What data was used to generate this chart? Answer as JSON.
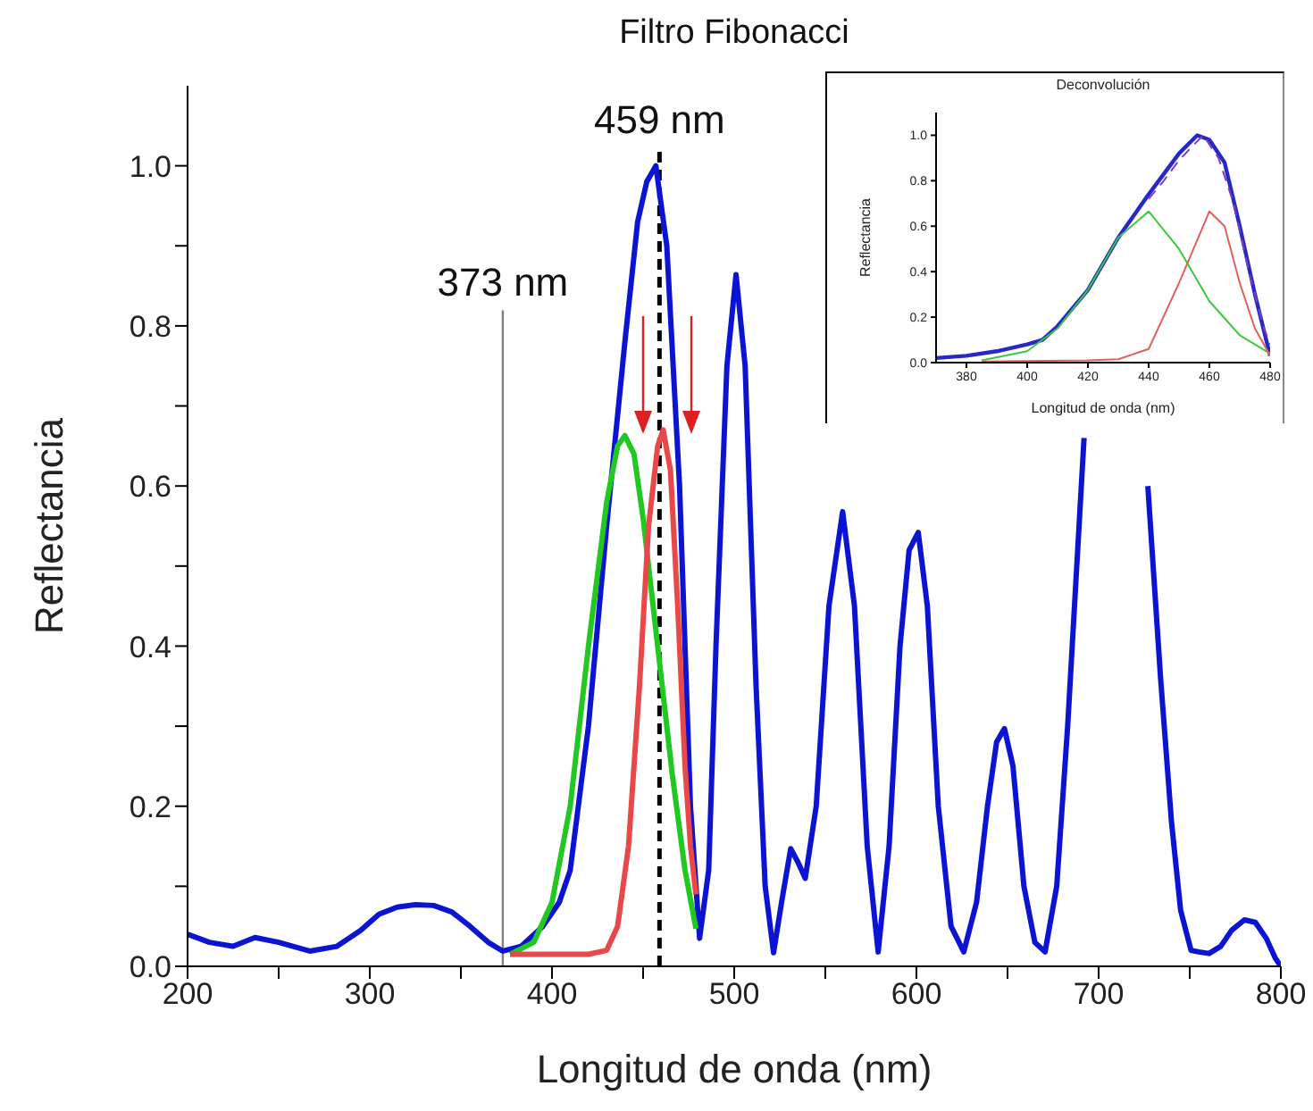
{
  "chart_data": [
    {
      "type": "line",
      "title": "Filtro Fibonacci",
      "xlabel": "Longitud de onda (nm)",
      "ylabel": "Reflectancia",
      "xlim": [
        200,
        800
      ],
      "ylim": [
        0,
        1.1
      ],
      "xticks": [
        200,
        {
          "value": 250,
          "label": null
        },
        300,
        {
          "value": 350,
          "label": null
        },
        400,
        {
          "value": 450,
          "label": null
        },
        500,
        {
          "value": 550,
          "label": null
        },
        600,
        {
          "value": 650,
          "label": null
        },
        700,
        {
          "value": 750,
          "label": null
        },
        800
      ],
      "yticks": [
        {
          "value": 0,
          "label": "0.0"
        },
        {
          "value": 0.1,
          "label": null
        },
        {
          "value": 0.2,
          "label": "0.2"
        },
        {
          "value": 0.3,
          "label": null
        },
        {
          "value": 0.4,
          "label": "0.4"
        },
        {
          "value": 0.5,
          "label": null
        },
        {
          "value": 0.6,
          "label": "0.6"
        },
        {
          "value": 0.7,
          "label": null
        },
        {
          "value": 0.8,
          "label": "0.8"
        },
        {
          "value": 0.9,
          "label": null
        },
        {
          "value": 1,
          "label": "1.0"
        }
      ],
      "grid": false,
      "legend": false,
      "marker": "none",
      "line_style": "solid",
      "series": [
        {
          "color": "#0a14d2",
          "x": [
            200,
            212,
            225,
            237,
            250,
            267,
            282,
            295,
            305,
            315,
            325,
            335,
            345,
            355,
            365,
            373,
            383,
            395,
            404,
            410,
            420,
            430,
            440,
            447,
            452,
            457,
            463,
            470,
            476,
            481,
            486,
            490,
            496,
            501,
            506,
            512,
            517,
            521.6,
            526,
            531,
            535,
            539,
            545,
            552,
            559.5,
            566,
            573,
            579,
            585,
            591,
            596,
            601,
            606,
            612,
            619,
            626,
            633,
            639,
            644,
            648.3,
            653,
            659,
            665,
            670.6,
            677,
            683,
            688,
            692,
            706,
            720,
            727,
            734,
            740,
            745,
            750.7,
            755,
            760.6,
            767,
            773,
            780,
            786,
            792,
            797,
            800
          ],
          "values": [
            0.04,
            0.03,
            0.025,
            0.036,
            0.03,
            0.019,
            0.025,
            0.045,
            0.065,
            0.074,
            0.077,
            0.076,
            0.068,
            0.05,
            0.03,
            0.019,
            0.025,
            0.05,
            0.08,
            0.12,
            0.3,
            0.55,
            0.78,
            0.93,
            0.98,
            1.0,
            0.9,
            0.6,
            0.2,
            0.035,
            0.12,
            0.4,
            0.75,
            0.864,
            0.75,
            0.35,
            0.1,
            0.017,
            0.08,
            0.147,
            0.13,
            0.11,
            0.2,
            0.45,
            0.568,
            0.45,
            0.15,
            0.018,
            0.15,
            0.4,
            0.52,
            0.542,
            0.45,
            0.2,
            0.05,
            0.018,
            0.08,
            0.2,
            0.28,
            0.297,
            0.25,
            0.1,
            0.03,
            0.018,
            0.1,
            0.3,
            0.5,
            0.66,
            null,
            null,
            0.6,
            0.36,
            0.18,
            0.07,
            0.02,
            0.018,
            0.016,
            0.025,
            0.045,
            0.058,
            0.055,
            0.035,
            0.01,
            0.0
          ]
        },
        {
          "color": "#22c822",
          "x": [
            377,
            390,
            400,
            410,
            420,
            430,
            436,
            440,
            445,
            450,
            458,
            466,
            473,
            479
          ],
          "values": [
            0.015,
            0.03,
            0.08,
            0.2,
            0.4,
            0.58,
            0.65,
            0.663,
            0.64,
            0.56,
            0.4,
            0.24,
            0.12,
            0.047
          ]
        },
        {
          "color": "#e84848",
          "x": [
            377,
            400,
            420,
            430,
            436,
            442,
            448,
            453,
            458,
            461,
            465,
            469,
            473,
            476,
            479
          ],
          "values": [
            0.015,
            0.015,
            0.015,
            0.02,
            0.05,
            0.15,
            0.35,
            0.55,
            0.65,
            0.67,
            0.62,
            0.45,
            0.25,
            0.15,
            0.09
          ]
        }
      ],
      "ref_lines": [
        {
          "axis": "x",
          "value": 373,
          "label": "373 nm",
          "color": "#808080",
          "line_style": "solid"
        },
        {
          "axis": "x",
          "value": 459,
          "label": "459 nm",
          "color": "#000000",
          "line_style": "dashed"
        }
      ]
    },
    {
      "type": "line",
      "title": "Deconvolución",
      "xlabel": "Longitud de onda (nm)",
      "ylabel": "Reflectancia",
      "xlim": [
        370,
        480
      ],
      "ylim": [
        0,
        1.1
      ],
      "xticks": [
        380,
        400,
        420,
        440,
        460,
        480
      ],
      "yticks": [
        {
          "value": 0,
          "label": "0.0"
        },
        {
          "value": 0.2,
          "label": "0.2"
        },
        {
          "value": 0.4,
          "label": "0.4"
        },
        {
          "value": 0.6,
          "label": "0.6"
        },
        {
          "value": 0.8,
          "label": "0.8"
        },
        {
          "value": 1,
          "label": "1.0"
        }
      ],
      "grid": false,
      "legend": false,
      "marker": "none",
      "series": [
        {
          "color": "#2828c8",
          "x": [
            370,
            380,
            390,
            400,
            405,
            410,
            420,
            430,
            440,
            450,
            456,
            460,
            465,
            470,
            475,
            480
          ],
          "values": [
            0.02,
            0.03,
            0.05,
            0.08,
            0.1,
            0.16,
            0.32,
            0.55,
            0.74,
            0.92,
            1.0,
            0.98,
            0.88,
            0.6,
            0.3,
            0.03
          ]
        },
        {
          "color": "#7a3fc0",
          "line_style": "dashed",
          "x": [
            440,
            445,
            450,
            455,
            458,
            463,
            468,
            473,
            478,
            480
          ],
          "values": [
            0.72,
            0.8,
            0.89,
            0.96,
            1.0,
            0.9,
            0.7,
            0.4,
            0.15,
            0.08
          ]
        },
        {
          "color": "#3cc83c",
          "x": [
            385,
            400,
            410,
            420,
            430,
            440,
            450,
            460,
            470,
            480
          ],
          "values": [
            0.01,
            0.05,
            0.15,
            0.32,
            0.55,
            0.665,
            0.5,
            0.27,
            0.12,
            0.04
          ]
        },
        {
          "color": "#e06060",
          "x": [
            385,
            420,
            430,
            440,
            450,
            460,
            465,
            470,
            475,
            480
          ],
          "values": [
            0.005,
            0.01,
            0.015,
            0.06,
            0.35,
            0.665,
            0.6,
            0.35,
            0.15,
            0.03
          ]
        }
      ]
    }
  ]
}
